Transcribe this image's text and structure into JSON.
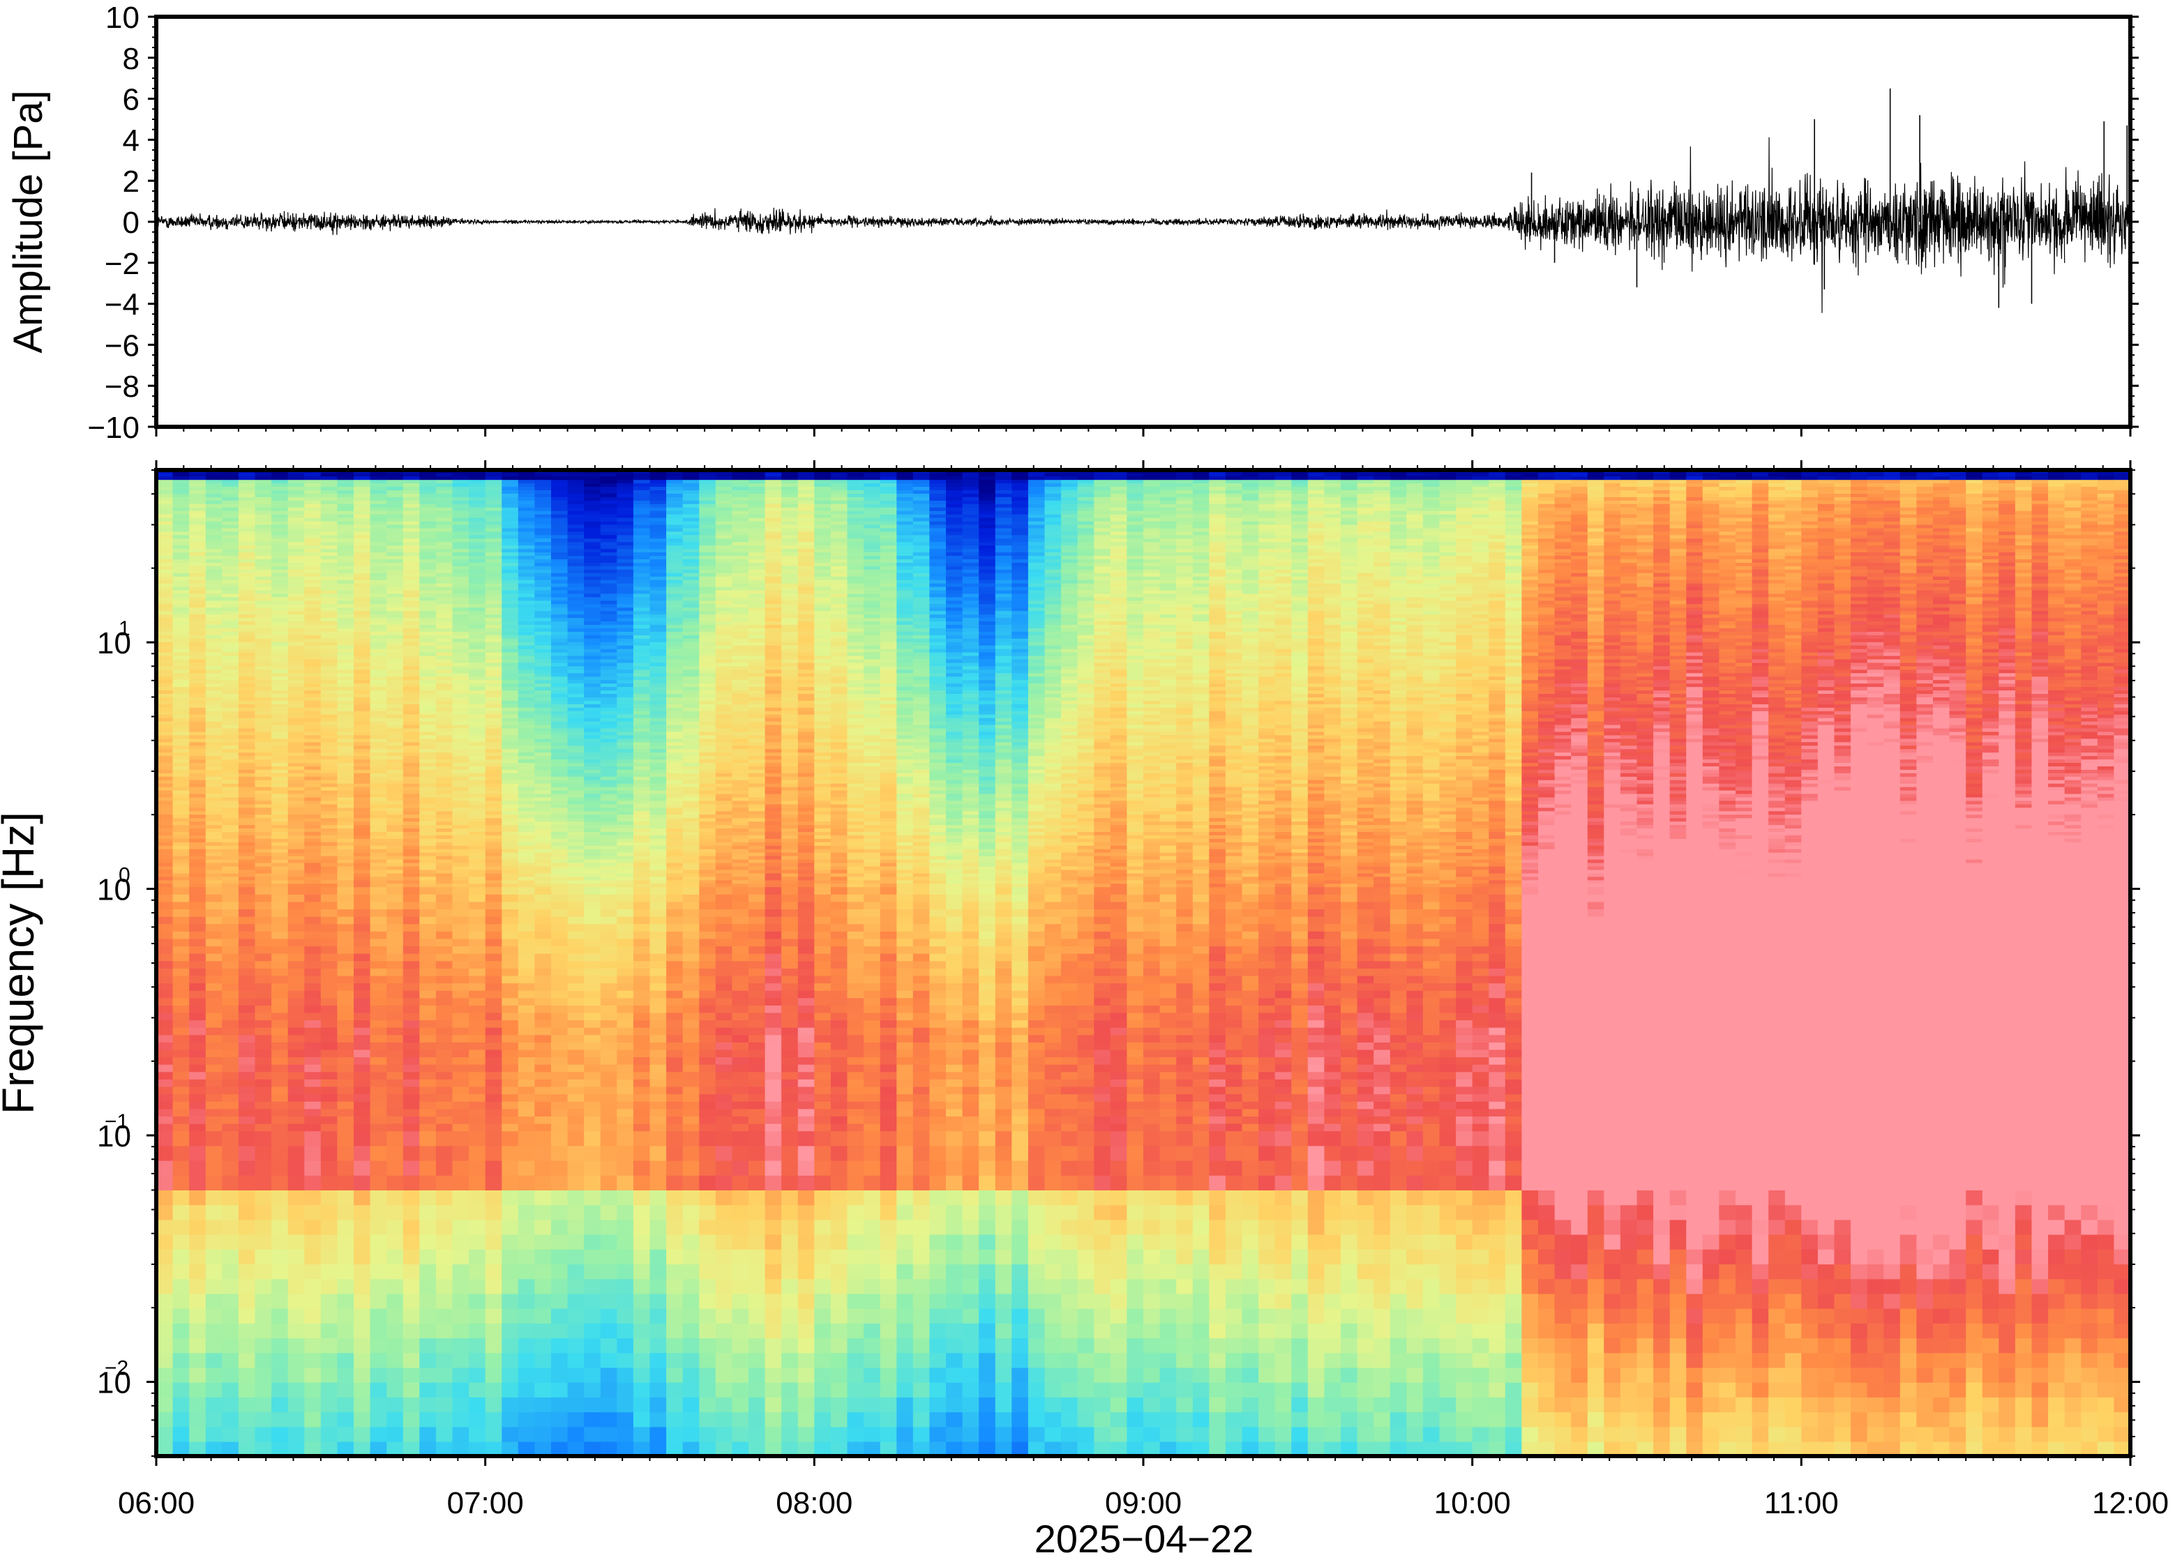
{
  "chart_data": [
    {
      "type": "line",
      "panel": "waveform",
      "ylabel": "Amplitude [Pa]",
      "ylim": [
        -10,
        10
      ],
      "yticks": [
        -10,
        -8,
        -6,
        -4,
        -2,
        0,
        2,
        4,
        6,
        8,
        10
      ],
      "ytick_labels": [
        "−10",
        "−8",
        "−6",
        "−4",
        "−2",
        "0",
        "2",
        "4",
        "6",
        "8",
        "10"
      ],
      "x_start": "06:00",
      "x_end": "12:00",
      "envelope": {
        "hours": [
          6.0,
          6.5,
          6.85,
          7.0,
          7.6,
          7.65,
          7.9,
          8.05,
          8.8,
          9.0,
          9.3,
          9.5,
          9.9,
          10.1,
          10.18,
          10.3,
          10.6,
          11.0,
          11.3,
          11.6,
          12.0
        ],
        "amplitude_pa": [
          0.3,
          0.45,
          0.25,
          0.08,
          0.06,
          0.35,
          0.6,
          0.25,
          0.12,
          0.15,
          0.15,
          0.35,
          0.3,
          0.35,
          1.2,
          1.1,
          1.7,
          2.0,
          2.1,
          2.0,
          1.8
        ]
      },
      "peaks": [
        {
          "hour": 11.27,
          "value_pa": 6.5
        },
        {
          "hour": 11.36,
          "value_pa": 5.2
        },
        {
          "hour": 11.04,
          "value_pa": 5.0
        },
        {
          "hour": 11.92,
          "value_pa": 4.9
        },
        {
          "hour": 11.99,
          "value_pa": 4.7
        },
        {
          "hour": 11.6,
          "value_pa": -4.2
        },
        {
          "hour": 11.7,
          "value_pa": -4.0
        },
        {
          "hour": 10.5,
          "value_pa": -3.2
        },
        {
          "hour": 11.07,
          "value_pa": -3.3
        },
        {
          "hour": 10.18,
          "value_pa": 2.4
        },
        {
          "hour": 10.25,
          "value_pa": -2.0
        }
      ],
      "grid": false
    },
    {
      "type": "heatmap",
      "panel": "spectrogram",
      "ylabel": "Frequency [Hz]",
      "yscale": "log",
      "ylim": [
        0.005,
        50
      ],
      "yticks": [
        0.01,
        0.1,
        1,
        10
      ],
      "ytick_labels": [
        {
          "base": "10",
          "exp": "−2"
        },
        {
          "base": "10",
          "exp": "−1"
        },
        {
          "base": "10",
          "exp": "0"
        },
        {
          "base": "10",
          "exp": "1"
        }
      ],
      "xlabel": "2025−04−22",
      "x_start": "06:00",
      "x_end": "12:00",
      "xtick_labels": [
        "06:00",
        "07:00",
        "08:00",
        "09:00",
        "10:00",
        "11:00",
        "12:00"
      ],
      "colormap": "jet (blue = low power, red = high power)",
      "features": [
        {
          "hours": [
            7.1,
            7.6
          ],
          "description": "quiet period, deep blue above ~1 Hz"
        },
        {
          "hours": [
            8.3,
            8.8
          ],
          "description": "quiet period, deep blue above ~1 Hz"
        },
        {
          "hours": [
            10.2,
            12.0
          ],
          "description": "high power, red below ~1 Hz"
        }
      ],
      "grid": false
    }
  ]
}
